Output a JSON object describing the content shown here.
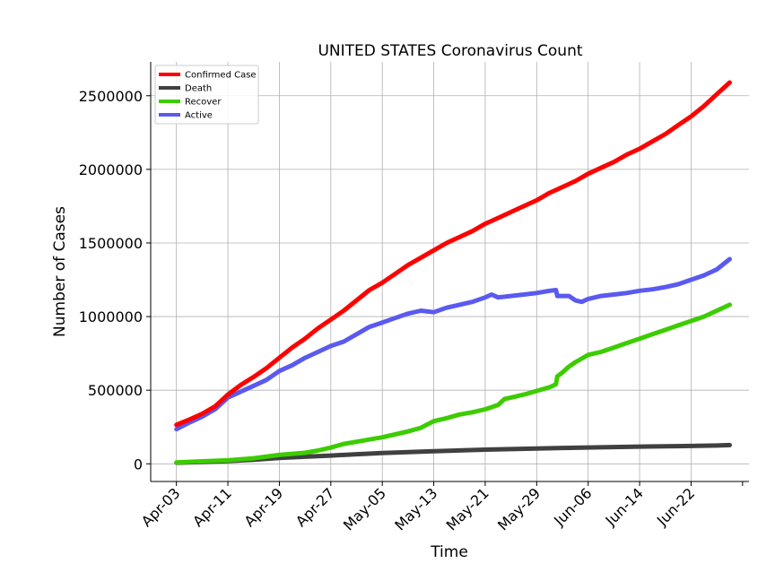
{
  "chart_data": {
    "type": "line",
    "title": "UNITED STATES Coronavirus Count",
    "xlabel": "Time",
    "ylabel": "Number of Cases",
    "x_ticks": [
      {
        "label": "Apr-03",
        "day": 0
      },
      {
        "label": "Apr-11",
        "day": 8
      },
      {
        "label": "Apr-19",
        "day": 16
      },
      {
        "label": "Apr-27",
        "day": 24
      },
      {
        "label": "May-05",
        "day": 32
      },
      {
        "label": "May-13",
        "day": 40
      },
      {
        "label": "May-21",
        "day": 48
      },
      {
        "label": "May-29",
        "day": 56
      },
      {
        "label": "Jun-06",
        "day": 64
      },
      {
        "label": "Jun-14",
        "day": 72
      },
      {
        "label": "Jun-22",
        "day": 80
      }
    ],
    "xlim": [
      -4,
      89
    ],
    "ylim": [
      -120000,
      2730000
    ],
    "y_ticks": [
      0,
      500000,
      1000000,
      1500000,
      2000000,
      2500000
    ],
    "grid": true,
    "legend_position": "top-left",
    "series": [
      {
        "name": "Confirmed Case",
        "color": "#ff0000",
        "points": [
          [
            0,
            265000
          ],
          [
            2,
            300000
          ],
          [
            4,
            340000
          ],
          [
            6,
            390000
          ],
          [
            8,
            470000
          ],
          [
            10,
            535000
          ],
          [
            12,
            590000
          ],
          [
            14,
            650000
          ],
          [
            16,
            720000
          ],
          [
            18,
            790000
          ],
          [
            20,
            850000
          ],
          [
            22,
            920000
          ],
          [
            24,
            980000
          ],
          [
            26,
            1040000
          ],
          [
            28,
            1110000
          ],
          [
            30,
            1180000
          ],
          [
            32,
            1230000
          ],
          [
            34,
            1290000
          ],
          [
            36,
            1350000
          ],
          [
            38,
            1400000
          ],
          [
            40,
            1450000
          ],
          [
            42,
            1500000
          ],
          [
            44,
            1540000
          ],
          [
            46,
            1580000
          ],
          [
            48,
            1630000
          ],
          [
            50,
            1670000
          ],
          [
            52,
            1710000
          ],
          [
            54,
            1750000
          ],
          [
            56,
            1790000
          ],
          [
            58,
            1840000
          ],
          [
            60,
            1880000
          ],
          [
            62,
            1920000
          ],
          [
            64,
            1970000
          ],
          [
            66,
            2010000
          ],
          [
            68,
            2050000
          ],
          [
            70,
            2100000
          ],
          [
            72,
            2140000
          ],
          [
            74,
            2190000
          ],
          [
            76,
            2240000
          ],
          [
            78,
            2300000
          ],
          [
            80,
            2360000
          ],
          [
            82,
            2430000
          ],
          [
            84,
            2510000
          ],
          [
            86,
            2590000
          ]
        ]
      },
      {
        "name": "Death",
        "color": "#404040",
        "points": [
          [
            0,
            7000
          ],
          [
            4,
            12000
          ],
          [
            8,
            18000
          ],
          [
            12,
            28000
          ],
          [
            16,
            40000
          ],
          [
            20,
            48000
          ],
          [
            24,
            56000
          ],
          [
            28,
            65000
          ],
          [
            32,
            73000
          ],
          [
            36,
            80000
          ],
          [
            40,
            86000
          ],
          [
            44,
            91000
          ],
          [
            48,
            96000
          ],
          [
            52,
            100000
          ],
          [
            56,
            104000
          ],
          [
            60,
            108000
          ],
          [
            64,
            111000
          ],
          [
            68,
            114000
          ],
          [
            72,
            117000
          ],
          [
            76,
            119000
          ],
          [
            80,
            121000
          ],
          [
            84,
            124000
          ],
          [
            86,
            127000
          ]
        ]
      },
      {
        "name": "Recover",
        "color": "#3ccc00",
        "points": [
          [
            0,
            10000
          ],
          [
            4,
            17000
          ],
          [
            8,
            24000
          ],
          [
            12,
            38000
          ],
          [
            16,
            60000
          ],
          [
            20,
            75000
          ],
          [
            22,
            90000
          ],
          [
            24,
            110000
          ],
          [
            26,
            135000
          ],
          [
            28,
            150000
          ],
          [
            30,
            165000
          ],
          [
            32,
            180000
          ],
          [
            34,
            200000
          ],
          [
            36,
            220000
          ],
          [
            38,
            245000
          ],
          [
            40,
            290000
          ],
          [
            42,
            310000
          ],
          [
            44,
            335000
          ],
          [
            46,
            350000
          ],
          [
            48,
            370000
          ],
          [
            50,
            400000
          ],
          [
            51,
            440000
          ],
          [
            52,
            450000
          ],
          [
            54,
            470000
          ],
          [
            56,
            495000
          ],
          [
            58,
            520000
          ],
          [
            59,
            540000
          ],
          [
            59.2,
            595000
          ],
          [
            60,
            620000
          ],
          [
            61,
            660000
          ],
          [
            62,
            690000
          ],
          [
            64,
            740000
          ],
          [
            66,
            760000
          ],
          [
            68,
            790000
          ],
          [
            70,
            820000
          ],
          [
            72,
            850000
          ],
          [
            74,
            880000
          ],
          [
            76,
            910000
          ],
          [
            78,
            940000
          ],
          [
            80,
            970000
          ],
          [
            82,
            1000000
          ],
          [
            84,
            1040000
          ],
          [
            86,
            1080000
          ]
        ]
      },
      {
        "name": "Active",
        "color": "#5a5af0",
        "points": [
          [
            0,
            235000
          ],
          [
            2,
            280000
          ],
          [
            4,
            320000
          ],
          [
            6,
            370000
          ],
          [
            8,
            450000
          ],
          [
            10,
            490000
          ],
          [
            12,
            530000
          ],
          [
            14,
            570000
          ],
          [
            16,
            630000
          ],
          [
            18,
            670000
          ],
          [
            20,
            720000
          ],
          [
            22,
            760000
          ],
          [
            24,
            800000
          ],
          [
            26,
            830000
          ],
          [
            28,
            880000
          ],
          [
            30,
            930000
          ],
          [
            32,
            960000
          ],
          [
            34,
            990000
          ],
          [
            36,
            1020000
          ],
          [
            38,
            1040000
          ],
          [
            40,
            1030000
          ],
          [
            42,
            1060000
          ],
          [
            44,
            1080000
          ],
          [
            46,
            1100000
          ],
          [
            48,
            1130000
          ],
          [
            49,
            1150000
          ],
          [
            50,
            1130000
          ],
          [
            52,
            1140000
          ],
          [
            54,
            1150000
          ],
          [
            56,
            1160000
          ],
          [
            58,
            1175000
          ],
          [
            59,
            1180000
          ],
          [
            59.2,
            1140000
          ],
          [
            61,
            1140000
          ],
          [
            62,
            1110000
          ],
          [
            63,
            1100000
          ],
          [
            64,
            1120000
          ],
          [
            66,
            1140000
          ],
          [
            68,
            1150000
          ],
          [
            70,
            1160000
          ],
          [
            72,
            1175000
          ],
          [
            74,
            1185000
          ],
          [
            76,
            1200000
          ],
          [
            78,
            1220000
          ],
          [
            80,
            1250000
          ],
          [
            82,
            1280000
          ],
          [
            84,
            1320000
          ],
          [
            86,
            1390000
          ]
        ]
      }
    ]
  }
}
